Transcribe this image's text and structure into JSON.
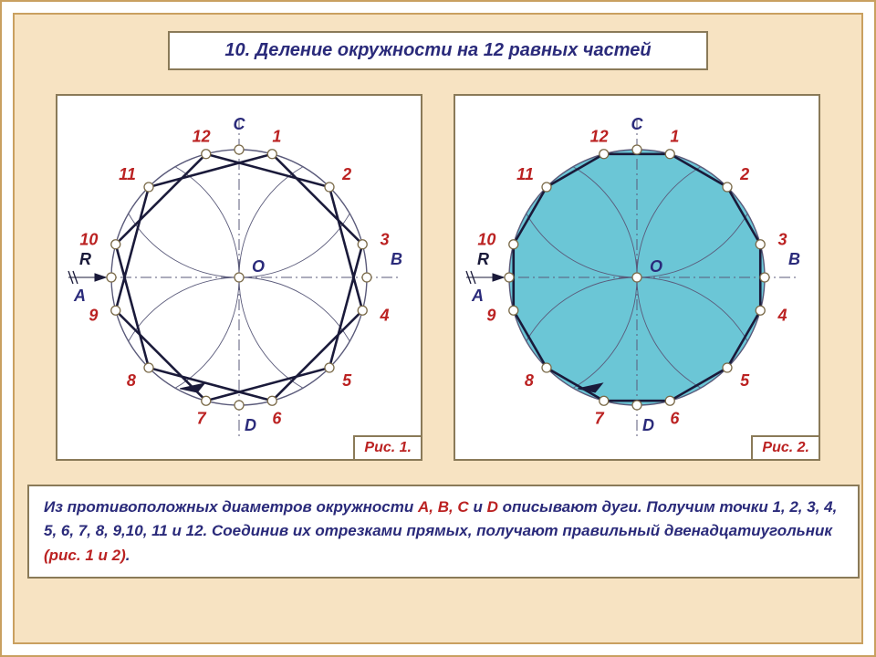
{
  "title": "10. Деление окружности на 12 равных частей",
  "frame_color": "#c9a060",
  "panel_bg": "#f7e3c2",
  "box_border": "#8a7a58",
  "text_color": "#2a2a7a",
  "accent_color": "#b22",
  "fig_bg": "#ffffff",
  "circle_fill_right": "#6bc6d6",
  "stroke_main": "#1a1a3a",
  "stroke_thin": "#5a5a7a",
  "node_stroke": "#7a6a48",
  "R": 140,
  "points": [
    {
      "n": "1",
      "ang": 75
    },
    {
      "n": "2",
      "ang": 45
    },
    {
      "n": "3",
      "ang": 15
    },
    {
      "n": "4",
      "ang": -15
    },
    {
      "n": "5",
      "ang": -45
    },
    {
      "n": "6",
      "ang": -75
    },
    {
      "n": "7",
      "ang": -105
    },
    {
      "n": "8",
      "ang": -135
    },
    {
      "n": "9",
      "ang": -165
    },
    {
      "n": "10",
      "ang": 165
    },
    {
      "n": "11",
      "ang": 135
    },
    {
      "n": "12",
      "ang": 105
    }
  ],
  "axis_labels": {
    "A": "A",
    "B": "B",
    "C": "C",
    "D": "D",
    "O": "O",
    "R": "R"
  },
  "captions": {
    "left": "Рис. 1.",
    "right": "Рис. 2."
  },
  "footer_lead": "   Из противоположных диаметров окружности ",
  "footer_abcd": "A, B, C",
  "footer_and": " и ",
  "footer_d": "D",
  "footer_mid": " описывают дуги. Получим точки 1, 2, 3, 4, 5, 6, 7, 8, 9,10, 11 и 12. Соединив их отрезками прямых, получают правильный двенадцатиугольник ",
  "footer_ref": "(рис. 1 и 2)",
  "footer_end": "."
}
